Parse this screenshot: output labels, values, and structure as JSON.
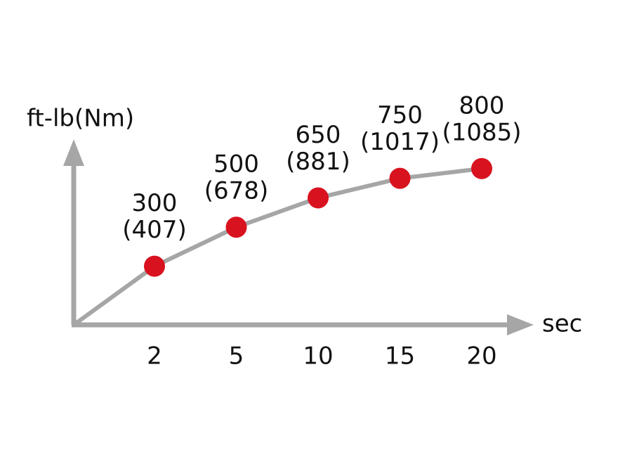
{
  "chart_data": {
    "type": "line",
    "y_label": "ft-lb(Nm)",
    "x_label": "sec",
    "categories": [
      "2",
      "5",
      "10",
      "15",
      "20"
    ],
    "values": [
      300,
      500,
      650,
      750,
      800
    ],
    "nm_labels": [
      "(407)",
      "(678)",
      "(881)",
      "(1017)",
      "(1085)"
    ],
    "color": "#d9121f",
    "line_color": "#a6a6a6",
    "ylim": [
      0,
      900
    ]
  }
}
